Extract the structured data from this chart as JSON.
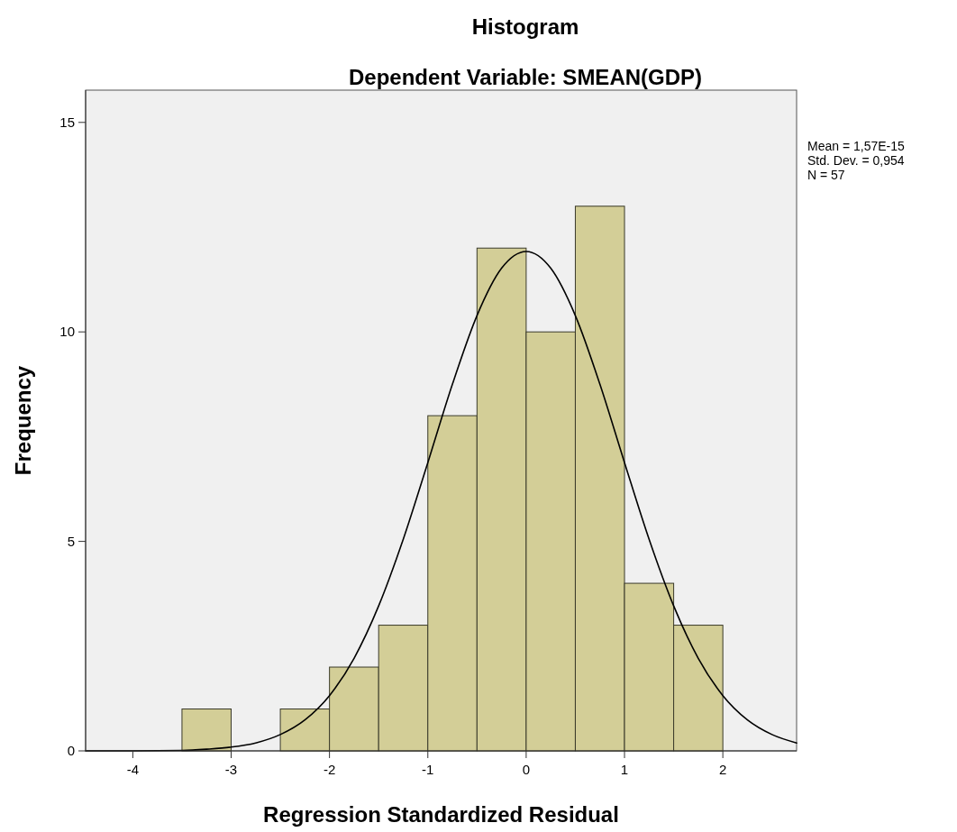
{
  "chart_data": {
    "type": "histogram",
    "title": "Histogram",
    "subtitle": "Dependent Variable: SMEAN(GDP)",
    "xlabel": "Regression Standardized Residual",
    "ylabel": "Frequency",
    "bins": [
      -3.5,
      -3,
      -2.5,
      -2,
      -1.5,
      -1,
      -0.5,
      0,
      0.5,
      1,
      1.5,
      2
    ],
    "values": [
      1,
      0,
      1,
      2,
      3,
      8,
      12,
      10,
      13,
      4,
      3
    ],
    "color": "#d3ce97",
    "series": [
      {
        "type": "line",
        "color": "#000000",
        "x": [
          -4.48,
          -4,
          -3.5,
          -3.25,
          -3,
          -2.75,
          -2.5,
          -2.25,
          -2,
          -1.75,
          -1.5,
          -1.25,
          -1,
          -0.75,
          -0.5,
          -0.25,
          0,
          0.25,
          0.5,
          0.75,
          1,
          1.25,
          1.5,
          1.75,
          2,
          2.25,
          2.5,
          2.75
        ],
        "values": [
          0,
          0,
          0.01,
          0.04,
          0.09,
          0.19,
          0.39,
          0.74,
          1.32,
          2.21,
          3.46,
          5.05,
          6.88,
          8.75,
          10.39,
          11.52,
          11.92,
          11.52,
          10.39,
          8.75,
          6.88,
          5.05,
          3.46,
          2.21,
          1.32,
          0.74,
          0.39,
          0.19
        ]
      }
    ],
    "xlim": [
      -4.48,
      2.75
    ],
    "ylim": [
      0,
      15.77
    ],
    "xticks": [
      -4,
      -3,
      -2,
      -1,
      0,
      1,
      2
    ],
    "yticks": [
      0,
      5,
      10,
      15
    ],
    "grid": false,
    "annotations": [
      "Mean = 1,57E-15",
      "Std. Dev. = 0,954",
      "N = 57"
    ]
  }
}
